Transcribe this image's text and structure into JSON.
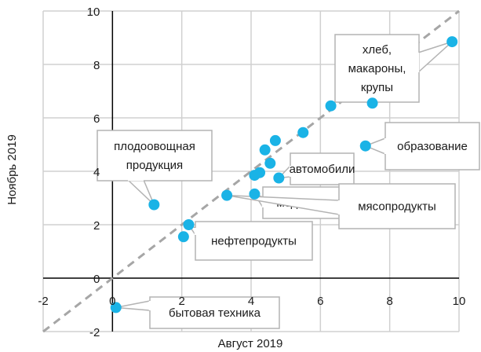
{
  "chart_data": {
    "type": "scatter",
    "title": "",
    "xlabel": "Август 2019",
    "ylabel": "Ноябрь 2019",
    "xlim": [
      -2,
      10
    ],
    "ylim": [
      -2,
      10
    ],
    "x_ticks": [
      -2,
      0,
      2,
      4,
      6,
      8,
      10
    ],
    "y_ticks": [
      -2,
      0,
      2,
      4,
      6,
      8,
      10
    ],
    "grid": true,
    "reference_line": {
      "style": "dashed",
      "from": [
        -2,
        -2
      ],
      "to": [
        10,
        10
      ]
    },
    "colors": {
      "points": "#1ab3e6",
      "grid": "#d0d0d0",
      "axes": "#000000",
      "diagonal": "#a6a6a6",
      "callout_border": "#b3b3b3"
    },
    "points": [
      {
        "x": 9.8,
        "y": 8.85
      },
      {
        "x": 7.5,
        "y": 6.55
      },
      {
        "x": 6.3,
        "y": 6.45
      },
      {
        "x": 5.5,
        "y": 5.45
      },
      {
        "x": 7.3,
        "y": 4.95
      },
      {
        "x": 4.7,
        "y": 5.15
      },
      {
        "x": 4.4,
        "y": 4.8
      },
      {
        "x": 4.55,
        "y": 4.3
      },
      {
        "x": 4.25,
        "y": 3.95
      },
      {
        "x": 4.1,
        "y": 3.85
      },
      {
        "x": 4.8,
        "y": 3.75
      },
      {
        "x": 3.3,
        "y": 3.1
      },
      {
        "x": 4.1,
        "y": 3.15
      },
      {
        "x": 1.2,
        "y": 2.75
      },
      {
        "x": 2.2,
        "y": 2.0
      },
      {
        "x": 2.05,
        "y": 1.55
      },
      {
        "x": 0.1,
        "y": -1.1
      }
    ],
    "annotations": [
      {
        "lines": [
          "хлеб,",
          "макароны,",
          "крупы"
        ],
        "point": 0
      },
      {
        "lines": [
          "образование"
        ],
        "point": 4
      },
      {
        "lines": [
          "плодоовощная",
          "продукция"
        ],
        "point": 13
      },
      {
        "lines": [
          "автомобили"
        ],
        "point": 10
      },
      {
        "lines": [
          "мед. услуги"
        ],
        "point": 12
      },
      {
        "lines": [
          "мясопродукты"
        ],
        "point": 11
      },
      {
        "lines": [
          "нефтепродукты"
        ],
        "point": 14
      },
      {
        "lines": [
          "бытовая техника"
        ],
        "point": 16
      }
    ]
  }
}
